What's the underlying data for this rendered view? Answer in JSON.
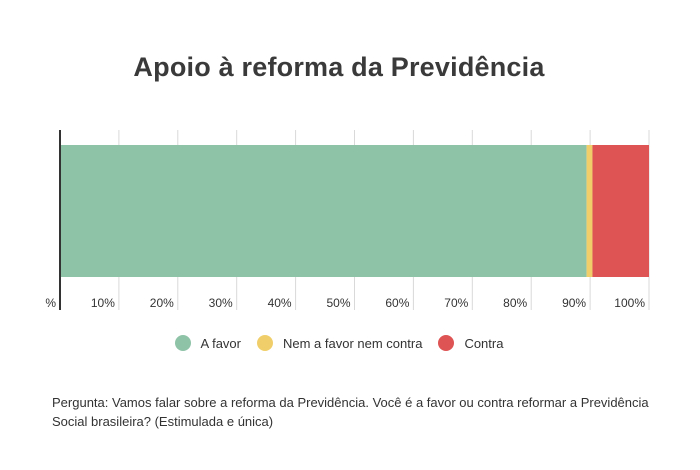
{
  "chart_data": {
    "type": "bar",
    "orientation": "horizontal",
    "stacked": true,
    "title": "Apoio à reforma da Previdência",
    "categories": [
      ""
    ],
    "series": [
      {
        "name": "A favor",
        "values": [
          89.4
        ],
        "color": "#8fc3a8"
      },
      {
        "name": "Nem a favor nem contra",
        "values": [
          1.0
        ],
        "color": "#f0cf6a"
      },
      {
        "name": "Contra",
        "values": [
          9.6
        ],
        "color": "#de5454"
      }
    ],
    "xlim": [
      0,
      100
    ],
    "x_ticks": [
      "%",
      "10%",
      "20%",
      "30%",
      "40%",
      "50%",
      "60%",
      "70%",
      "80%",
      "90%",
      "100%"
    ],
    "x_tick_values": [
      0,
      10,
      20,
      30,
      40,
      50,
      60,
      70,
      80,
      90,
      100
    ],
    "grid": true,
    "legend_position": "bottom"
  },
  "footnote": "Pergunta: Vamos falar sobre a reforma da Previdência. Você é a favor ou contra reformar a Previdência Social brasileira? (Estimulada e única)"
}
